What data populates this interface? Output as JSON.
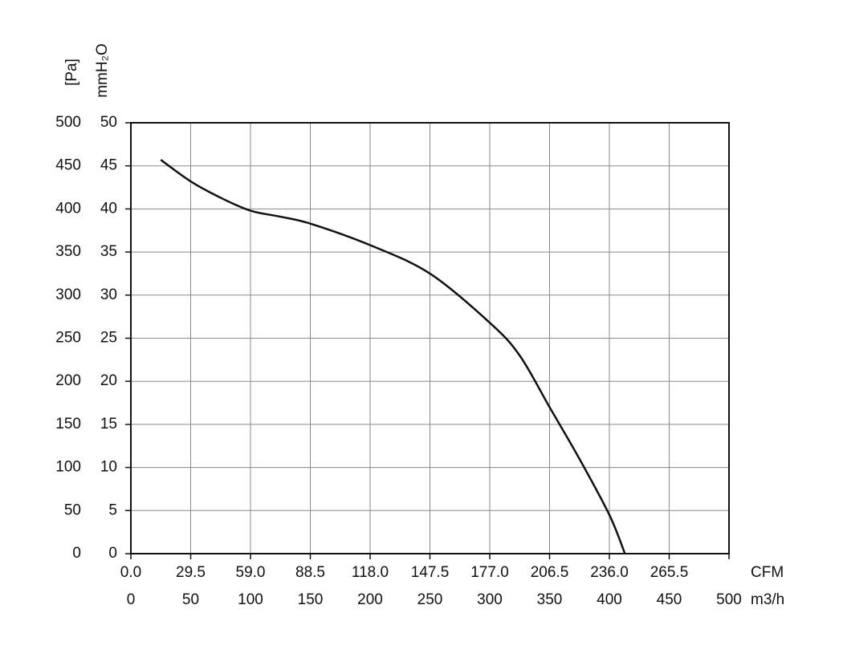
{
  "chart_data": {
    "type": "line",
    "y_label": "[Pa]",
    "y2_label": "mmH₂O",
    "x_label": "m3/h",
    "x2_label": "CFM",
    "x": [
      25,
      50,
      75,
      100,
      125,
      150,
      200,
      250,
      300,
      325,
      350,
      375,
      400,
      413
    ],
    "values": [
      457,
      432,
      413,
      398,
      391,
      383,
      358,
      325,
      268,
      230,
      170,
      110,
      45,
      0
    ],
    "color": "#111111",
    "xlim": [
      0,
      500
    ],
    "xticks": [
      0,
      50,
      100,
      150,
      200,
      250,
      300,
      350,
      400,
      450,
      500
    ],
    "x2lim": [
      0,
      295
    ],
    "x2ticks": [
      {
        "value": 0,
        "label": "0.0"
      },
      29.5,
      {
        "value": 59,
        "label": "59.0"
      },
      88.5,
      {
        "value": 118,
        "label": "118.0"
      },
      147.5,
      {
        "value": 177,
        "label": "177.0"
      },
      206.5,
      {
        "value": 236,
        "label": "236.0"
      },
      265.5
    ],
    "ylim": [
      0,
      500
    ],
    "yticks": [
      0,
      50,
      100,
      150,
      200,
      250,
      300,
      350,
      400,
      450,
      500
    ],
    "y2lim": [
      0,
      50
    ],
    "y2ticks": [
      0,
      5,
      10,
      15,
      20,
      25,
      30,
      35,
      40,
      45,
      50
    ],
    "grid": true
  }
}
